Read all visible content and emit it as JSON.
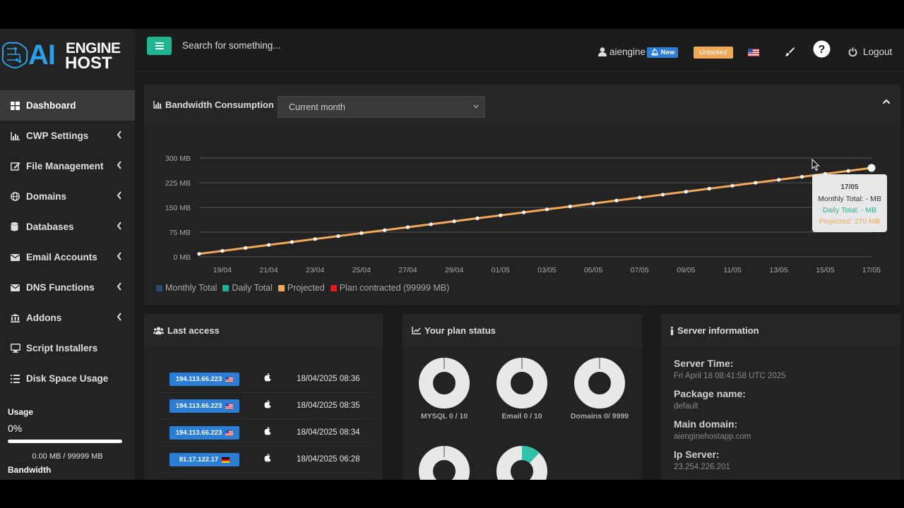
{
  "brand": {
    "logo_ai": "AI",
    "logo_engine": "ENGINE",
    "logo_host": "HOST"
  },
  "sidebar": {
    "items": [
      {
        "label": "Dashboard",
        "icon": "dashboard-icon",
        "active": true
      },
      {
        "label": "CWP Settings",
        "icon": "bar-chart-icon"
      },
      {
        "label": "File Management",
        "icon": "edit-icon"
      },
      {
        "label": "Domains",
        "icon": "globe-icon"
      },
      {
        "label": "Databases",
        "icon": "database-icon"
      },
      {
        "label": "Email Accounts",
        "icon": "envelope-icon"
      },
      {
        "label": "DNS Functions",
        "icon": "envelope-icon"
      },
      {
        "label": "Addons",
        "icon": "bank-icon"
      },
      {
        "label": "Script Installers",
        "icon": "monitor-icon"
      },
      {
        "label": "Disk Space Usage",
        "icon": "list-icon"
      }
    ],
    "usage_label": "Usage",
    "usage_percent": "0%",
    "usage_fraction": 0,
    "usage_value": "0.00 MB / 99999 MB",
    "bandwidth_label": "Bandwidth"
  },
  "header": {
    "search_placeholder": "Search for something...",
    "username": "aiengine",
    "new_badge": "New",
    "unlocked_badge": "Unlocked",
    "logout_label": "Logout"
  },
  "bandwidth": {
    "title": "Bandwidth Consumption",
    "period_selected": "Current month",
    "legend": [
      "Monthly Total",
      "Daily Total",
      "Projected",
      "Plan contracted (99999 MB)"
    ],
    "legend_colors": [
      "#2c4a6e",
      "#1fb58f",
      "#f0a85b",
      "#e01b1b"
    ],
    "tooltip": {
      "date": "17/05",
      "monthly": "Monthly Total: - MB",
      "daily": "Daily Total: - MB",
      "projected": "Projected: 270 MB"
    }
  },
  "chart_data": {
    "type": "line",
    "y_ticks": [
      "0 MB",
      "75 MB",
      "150 MB",
      "225 MB",
      "300 MB"
    ],
    "ylim": [
      0,
      300
    ],
    "x_ticks": [
      "19/04",
      "21/04",
      "23/04",
      "25/04",
      "27/04",
      "29/04",
      "01/05",
      "03/05",
      "05/05",
      "07/05",
      "09/05",
      "11/05",
      "13/05",
      "15/05",
      "17/05"
    ],
    "series": [
      {
        "name": "Projected",
        "color": "#f0a85b",
        "start_value": 9,
        "end_value": 270,
        "points": 30
      }
    ]
  },
  "last_access": {
    "title": "Last access",
    "rows": [
      {
        "ip": "194.113.66.223",
        "flag": "us",
        "date": "18/04/2025 08:36"
      },
      {
        "ip": "194.113.66.223",
        "flag": "us",
        "date": "18/04/2025 08:35"
      },
      {
        "ip": "194.113.66.223",
        "flag": "us",
        "date": "18/04/2025 08:34"
      },
      {
        "ip": "81.17.122.17",
        "flag": "de",
        "date": "18/04/2025 06:28"
      }
    ]
  },
  "plan_status": {
    "title": "Your plan status",
    "items": [
      {
        "label": "MYSQL 0 / 10",
        "fraction": 0
      },
      {
        "label": "Email 0 / 10",
        "fraction": 0
      },
      {
        "label": "Domains 0/ 9999",
        "fraction": 0
      },
      {
        "label": "",
        "fraction": 0
      },
      {
        "label": "",
        "fraction": 0.12
      }
    ]
  },
  "server_info": {
    "title": "Server information",
    "fields": [
      {
        "key": "Server Time:",
        "value": "Fri April 18 08:41:58 UTC 2025"
      },
      {
        "key": "Package name:",
        "value": "default"
      },
      {
        "key": "Main domain:",
        "value": "aienginehostapp.com"
      },
      {
        "key": "Ip Server:",
        "value": "23.254.226.201"
      }
    ]
  }
}
